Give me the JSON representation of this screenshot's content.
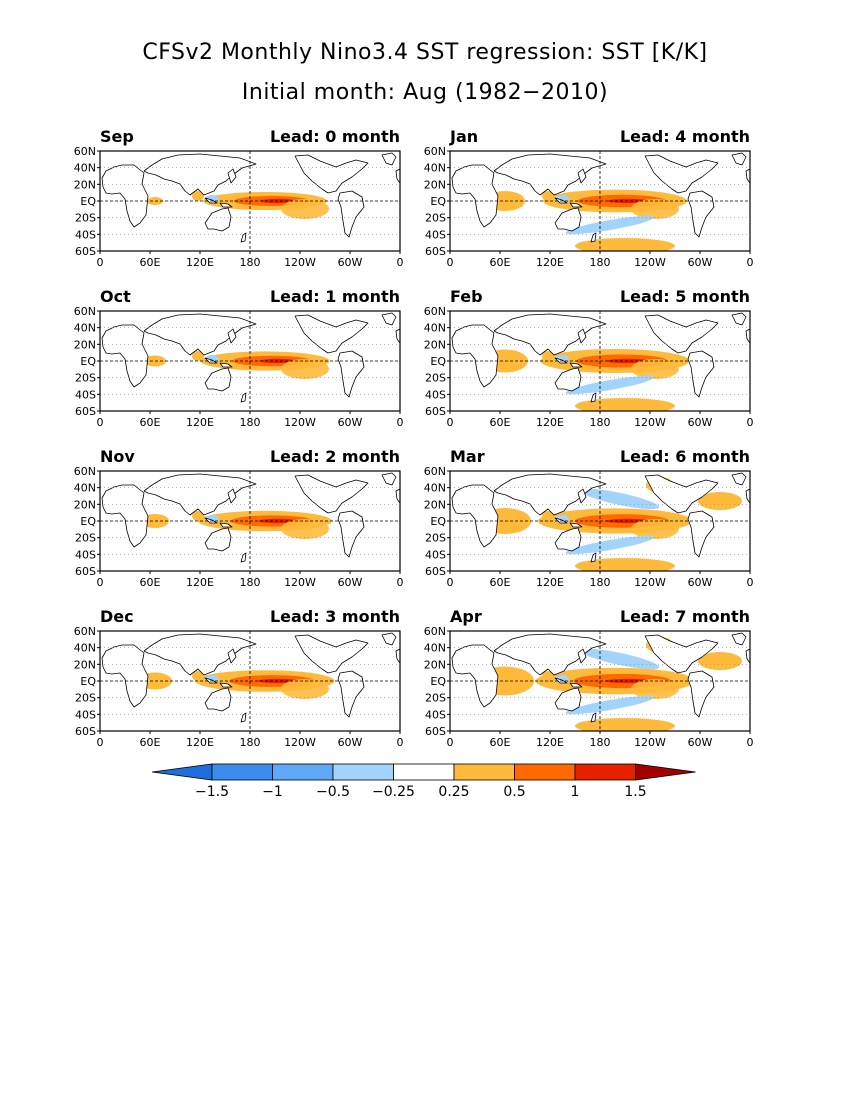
{
  "title_line1": "CFSv2 Monthly Nino3.4 SST regression: SST [K/K]",
  "title_line2": "Initial month: Aug (1982−2010)",
  "map": {
    "lat_labels": [
      "60N",
      "40N",
      "20N",
      "EQ",
      "20S",
      "40S",
      "60S"
    ],
    "lon_labels": [
      "0",
      "60E",
      "120E",
      "180",
      "120W",
      "60W",
      "0"
    ]
  },
  "panels": [
    {
      "month": "Sep",
      "lead": "Lead: 0 month",
      "lead_months": 0
    },
    {
      "month": "Jan",
      "lead": "Lead: 4 month",
      "lead_months": 4
    },
    {
      "month": "Oct",
      "lead": "Lead: 1 month",
      "lead_months": 1
    },
    {
      "month": "Feb",
      "lead": "Lead: 5 month",
      "lead_months": 5
    },
    {
      "month": "Nov",
      "lead": "Lead: 2 month",
      "lead_months": 2
    },
    {
      "month": "Mar",
      "lead": "Lead: 6 month",
      "lead_months": 6
    },
    {
      "month": "Dec",
      "lead": "Lead: 3 month",
      "lead_months": 3
    },
    {
      "month": "Apr",
      "lead": "Lead: 7 month",
      "lead_months": 7
    }
  ],
  "colorbar": {
    "labels": [
      "−1.5",
      "−1",
      "−0.5",
      "−0.25",
      "0.25",
      "0.5",
      "1",
      "1.5"
    ],
    "colors": [
      "#1e6fdc",
      "#3c8ceb",
      "#5fa8f5",
      "#a2d3fb",
      "#ffffff",
      "#ffba3c",
      "#ff6a00",
      "#e62000",
      "#a50000"
    ]
  }
}
